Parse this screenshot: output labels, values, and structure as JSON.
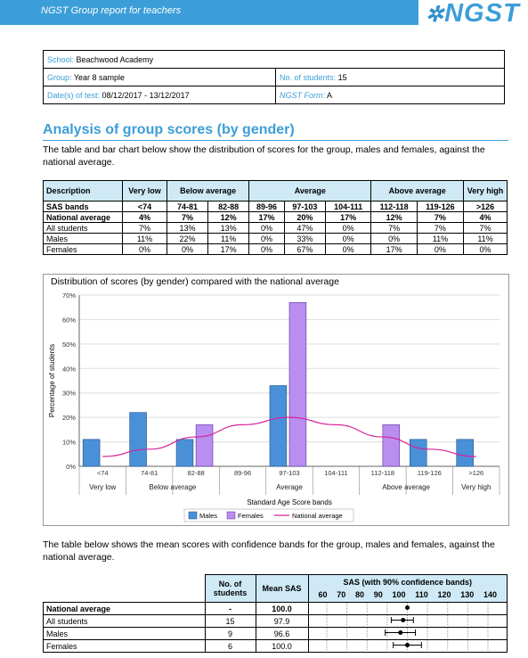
{
  "header": {
    "title": "NGST Group report for teachers",
    "logo": "NGST"
  },
  "info": {
    "school_label": "School:",
    "school": "Beachwood Academy",
    "group_label": "Group:",
    "group": "Year 8 sample",
    "students_label": "No. of students:",
    "students": "15",
    "dates_label": "Date(s) of test:",
    "dates": "08/12/2017 - 13/12/2017",
    "form_label": "NGST Form:",
    "form": "A"
  },
  "section": {
    "title": "Analysis of group scores (by gender)",
    "intro": "The table and bar chart below show the distribution of scores for the group, males and females, against the national average.",
    "mean_intro": "The table below shows the mean scores with confidence bands for the group, males and females, against the national average."
  },
  "dist_table": {
    "h_description": "Description",
    "h_very_low": "Very low",
    "h_below": "Below average",
    "h_average": "Average",
    "h_above": "Above average",
    "h_very_high": "Very high",
    "rows": [
      {
        "label": "SAS bands",
        "cells": [
          "<74",
          "74-81",
          "82-88",
          "89-96",
          "97-103",
          "104-111",
          "112-118",
          "119-126",
          ">126"
        ]
      },
      {
        "label": "National average",
        "cells": [
          "4%",
          "7%",
          "12%",
          "17%",
          "20%",
          "17%",
          "12%",
          "7%",
          "4%"
        ]
      },
      {
        "label": "All students",
        "cells": [
          "7%",
          "13%",
          "13%",
          "0%",
          "47%",
          "0%",
          "7%",
          "7%",
          "7%"
        ]
      },
      {
        "label": "Males",
        "cells": [
          "11%",
          "22%",
          "11%",
          "0%",
          "33%",
          "0%",
          "0%",
          "11%",
          "11%"
        ]
      },
      {
        "label": "Females",
        "cells": [
          "0%",
          "0%",
          "17%",
          "0%",
          "67%",
          "0%",
          "17%",
          "0%",
          "0%"
        ]
      }
    ]
  },
  "chart_data": {
    "type": "bar",
    "title": "Distribution of scores (by gender) compared with the national average",
    "xlabel": "Standard Age Score bands",
    "ylabel": "Percentage of students",
    "ylim": [
      0,
      70
    ],
    "yticks": [
      "0%",
      "10%",
      "20%",
      "30%",
      "40%",
      "50%",
      "60%",
      "70%"
    ],
    "categories": [
      "<74",
      "74-81",
      "82-88",
      "89-96",
      "97-103",
      "104-111",
      "112-118",
      "119-126",
      ">126"
    ],
    "groups": [
      {
        "label": "Very low",
        "from": 0,
        "to": 0
      },
      {
        "label": "Below average",
        "from": 1,
        "to": 2
      },
      {
        "label": "Average",
        "from": 3,
        "to": 5
      },
      {
        "label": "Above average",
        "from": 6,
        "to": 7
      },
      {
        "label": "Very high",
        "from": 8,
        "to": 8
      }
    ],
    "series": [
      {
        "name": "Males",
        "type": "bar",
        "color": "#4a90d9",
        "values": [
          11,
          22,
          11,
          0,
          33,
          0,
          0,
          11,
          11
        ]
      },
      {
        "name": "Females",
        "type": "bar",
        "color": "#b98ef0",
        "values": [
          0,
          0,
          17,
          0,
          67,
          0,
          17,
          0,
          0
        ]
      },
      {
        "name": "National average",
        "type": "line",
        "color": "#d6249a",
        "values": [
          4,
          7,
          12,
          17,
          20,
          17,
          12,
          7,
          4
        ]
      }
    ],
    "legend_position": "bottom"
  },
  "mean_table": {
    "h_students": "No. of students",
    "h_mean": "Mean SAS",
    "h_sas": "SAS (with 90% confidence bands)",
    "axis": [
      "60",
      "70",
      "80",
      "90",
      "100",
      "110",
      "120",
      "130",
      "140"
    ],
    "rows": [
      {
        "label": "National average",
        "students": "-",
        "mean": "100.0",
        "bold": true
      },
      {
        "label": "All students",
        "students": "15",
        "mean": "97.9",
        "bold": false,
        "ci": [
          92,
          103
        ]
      },
      {
        "label": "Males",
        "students": "9",
        "mean": "96.6",
        "bold": false,
        "ci": [
          89,
          104
        ]
      },
      {
        "label": "Females",
        "students": "6",
        "mean": "100.0",
        "bold": false,
        "ci": [
          93,
          107
        ]
      }
    ]
  }
}
